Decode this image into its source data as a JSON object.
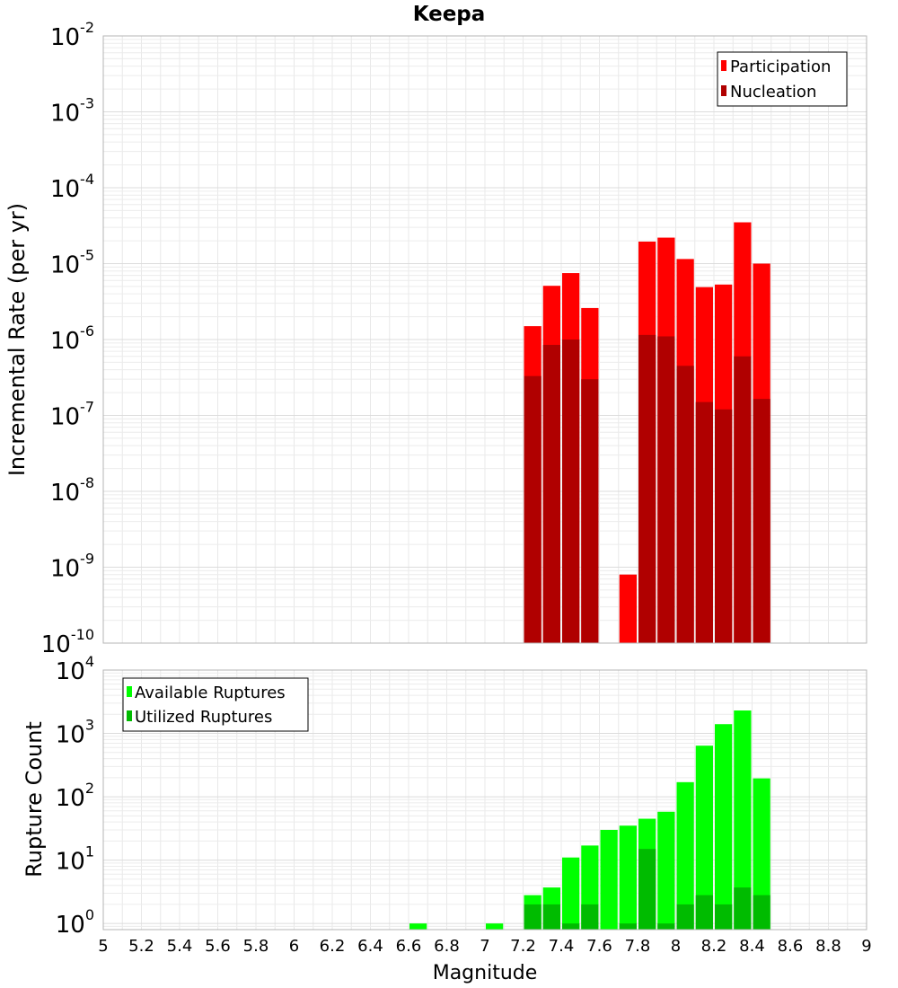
{
  "chart_data": {
    "type": "bar",
    "title": "Keepa",
    "xlabel": "Magnitude",
    "x_ticks": [
      "5",
      "5.2",
      "5.4",
      "5.6",
      "5.8",
      "6",
      "6.2",
      "6.4",
      "6.6",
      "6.8",
      "7",
      "7.2",
      "7.4",
      "7.6",
      "7.8",
      "8",
      "8.2",
      "8.4",
      "8.6",
      "8.8",
      "9"
    ],
    "xlim": [
      5,
      9
    ],
    "bin_width": 0.1,
    "panels": [
      {
        "ylabel": "Incremental Rate (per yr)",
        "yscale": "log",
        "ylim": [
          1e-10,
          0.01
        ],
        "y_ticks": [
          {
            "base": "10",
            "exp": "-10"
          },
          {
            "base": "10",
            "exp": "-9"
          },
          {
            "base": "10",
            "exp": "-8"
          },
          {
            "base": "10",
            "exp": "-7"
          },
          {
            "base": "10",
            "exp": "-6"
          },
          {
            "base": "10",
            "exp": "-5"
          },
          {
            "base": "10",
            "exp": "-4"
          },
          {
            "base": "10",
            "exp": "-3"
          },
          {
            "base": "10",
            "exp": "-2"
          }
        ],
        "legend_position": "top-right",
        "series": [
          {
            "name": "Participation",
            "color": "#ff0000",
            "x": [
              7.25,
              7.35,
              7.45,
              7.55,
              7.75,
              7.85,
              7.95,
              8.05,
              8.15,
              8.25,
              8.35,
              8.45
            ],
            "values": [
              1.5e-06,
              5.1e-06,
              7.5e-06,
              2.6e-06,
              8e-10,
              1.95e-05,
              2.2e-05,
              1.15e-05,
              4.9e-06,
              5.3e-06,
              3.5e-05,
              1e-05
            ]
          },
          {
            "name": "Nucleation",
            "color": "#b00000",
            "x": [
              7.25,
              7.35,
              7.45,
              7.55,
              7.85,
              7.95,
              8.05,
              8.15,
              8.25,
              8.35,
              8.45
            ],
            "values": [
              3.3e-07,
              8.5e-07,
              1e-06,
              3e-07,
              1.15e-06,
              1.1e-06,
              4.5e-07,
              1.5e-07,
              1.2e-07,
              6e-07,
              1.65e-07
            ]
          }
        ]
      },
      {
        "ylabel": "Rupture Count",
        "yscale": "log",
        "ylim": [
          0.8,
          10000
        ],
        "y_ticks": [
          {
            "base": "10",
            "exp": "0"
          },
          {
            "base": "10",
            "exp": "1"
          },
          {
            "base": "10",
            "exp": "2"
          },
          {
            "base": "10",
            "exp": "3"
          },
          {
            "base": "10",
            "exp": "4"
          }
        ],
        "legend_position": "top-left",
        "series": [
          {
            "name": "Available Ruptures",
            "color": "#00ff00",
            "x": [
              6.65,
              7.05,
              7.25,
              7.35,
              7.45,
              7.55,
              7.65,
              7.75,
              7.85,
              7.95,
              8.05,
              8.15,
              8.25,
              8.35,
              8.45
            ],
            "values": [
              1,
              1,
              2.8,
              3.7,
              11,
              17,
              30,
              35,
              45,
              58,
              170,
              640,
              1400,
              2300,
              195
            ]
          },
          {
            "name": "Utilized Ruptures",
            "color": "#00bb00",
            "x": [
              7.25,
              7.35,
              7.45,
              7.55,
              7.75,
              7.85,
              7.95,
              8.05,
              8.15,
              8.25,
              8.35,
              8.45
            ],
            "values": [
              2,
              2,
              1,
              2,
              1,
              15,
              1,
              2,
              2.8,
              2,
              3.7,
              2.8
            ]
          }
        ]
      }
    ]
  }
}
